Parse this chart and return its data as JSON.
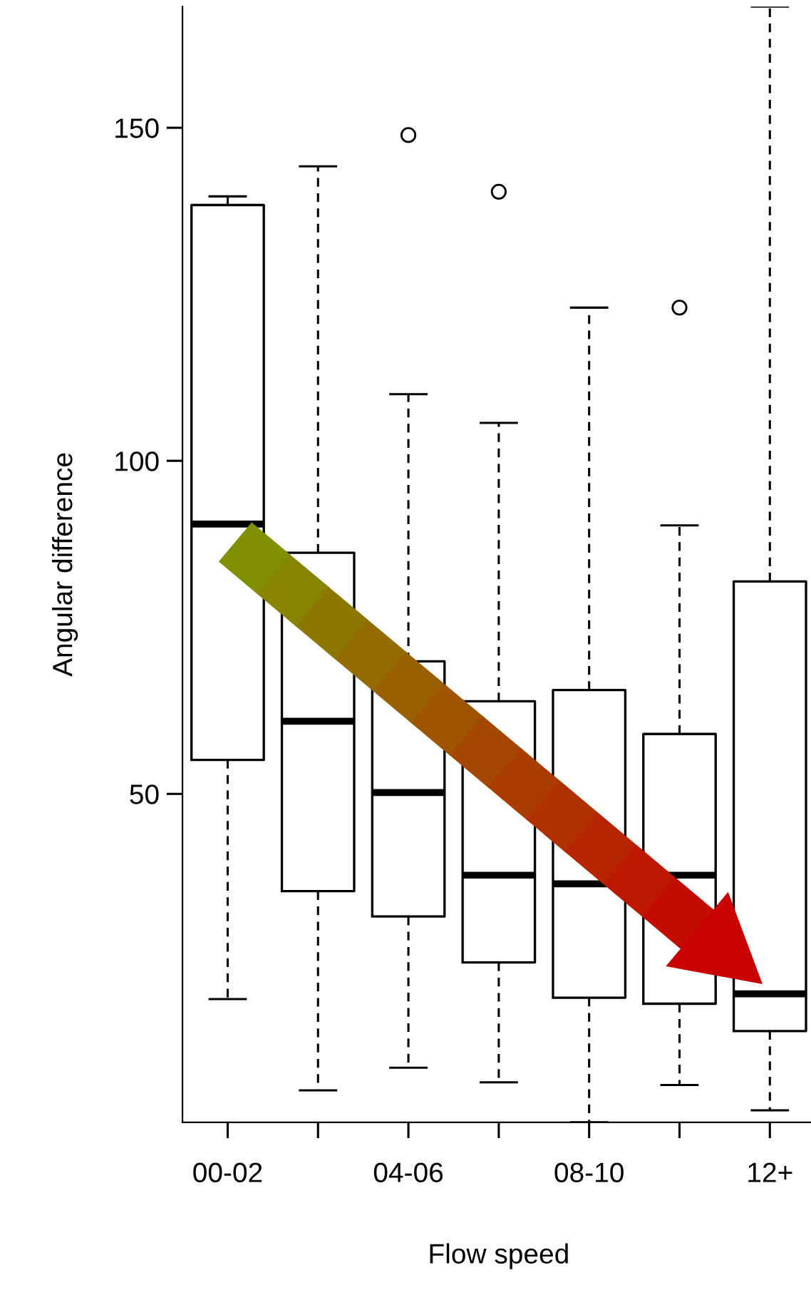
{
  "chart_data": {
    "type": "box",
    "xlabel": "Flow speed",
    "ylabel": "Angular difference",
    "categories": [
      "00-02",
      null,
      "04-06",
      null,
      "08-10",
      null,
      "12+"
    ],
    "boxes": [
      {
        "low": 19.2,
        "q1": 55.1,
        "median": 90.5,
        "q3": 138.4,
        "high": 139.7
      },
      {
        "low": 5.5,
        "q1": 35.4,
        "median": 60.9,
        "q3": 86.2,
        "high": 144.2
      },
      {
        "low": 8.9,
        "q1": 31.6,
        "median": 50.2,
        "q3": 69.9,
        "high": 110,
        "outliers": [
          148.9
        ]
      },
      {
        "low": 6.7,
        "q1": 24.7,
        "median": 37.8,
        "q3": 63.9,
        "high": 105.7,
        "outliers": [
          140.4
        ]
      },
      {
        "low": 0.7,
        "q1": 19.4,
        "median": 36.5,
        "q3": 65.6,
        "high": 123
      },
      {
        "low": 6.3,
        "q1": 18.5,
        "median": 37.8,
        "q3": 59,
        "high": 90.3,
        "outliers": [
          123
        ]
      },
      {
        "low": 2.5,
        "q1": 14.4,
        "median": 20,
        "q3": 81.9,
        "high": 168.2
      }
    ],
    "ylim": [
      0.7,
      168.2
    ],
    "yticks": [
      50,
      100,
      150
    ]
  }
}
